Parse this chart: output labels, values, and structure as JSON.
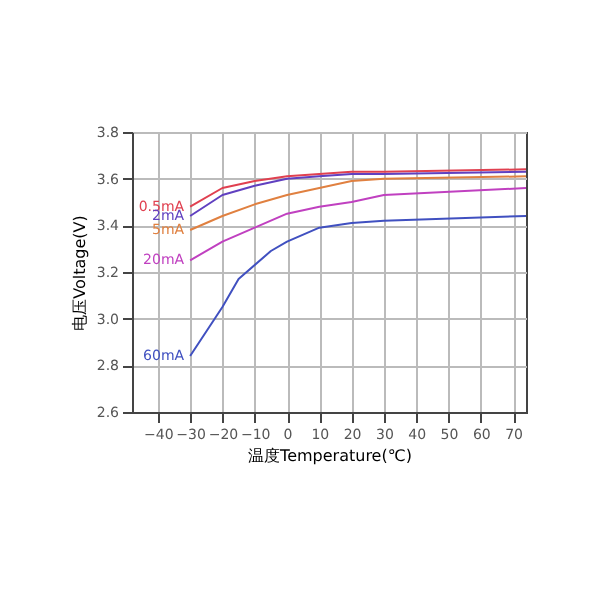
{
  "chart_data": {
    "type": "line",
    "xlabel": "温度Temperature(℃)",
    "ylabel": "电压Voltage(V)",
    "xlim": [
      -48,
      74
    ],
    "xticks": [
      -40,
      -30,
      -20,
      -10,
      0,
      10,
      20,
      30,
      40,
      50,
      60,
      70
    ],
    "ylim": [
      2.6,
      3.8
    ],
    "yticks": [
      {
        "value": 2.6,
        "label": "2.6"
      },
      {
        "value": 2.8,
        "label": "2.8"
      },
      {
        "value": 3.0,
        "label": "3.0"
      },
      {
        "value": 3.2,
        "label": "3.2"
      },
      {
        "value": 3.4,
        "label": "3.4"
      },
      {
        "value": 3.6,
        "label": "3.6"
      },
      {
        "value": 3.8,
        "label": "3.8"
      }
    ],
    "grid": true,
    "legend": false,
    "x": [
      -30,
      -20,
      -10,
      0,
      10,
      20,
      30,
      74
    ],
    "series": [
      {
        "name": "0.5mA",
        "color": "#e04050",
        "values": [
          3.48,
          3.56,
          3.59,
          3.61,
          3.62,
          3.63,
          3.63,
          3.64
        ]
      },
      {
        "name": "2mA",
        "color": "#6040c0",
        "values": [
          3.44,
          3.53,
          3.57,
          3.6,
          3.61,
          3.62,
          3.62,
          3.63
        ]
      },
      {
        "name": "5mA",
        "color": "#e08040",
        "values": [
          3.38,
          3.44,
          3.49,
          3.53,
          3.56,
          3.59,
          3.6,
          3.61
        ]
      },
      {
        "name": "20mA",
        "color": "#c040c0",
        "values": [
          3.25,
          3.33,
          3.39,
          3.45,
          3.48,
          3.5,
          3.53,
          3.56
        ]
      },
      {
        "name": "60mA",
        "color": "#4050c0",
        "x": [
          -30,
          -20,
          -15,
          -5,
          0,
          10,
          20,
          30,
          74
        ],
        "values": [
          2.84,
          3.05,
          3.17,
          3.29,
          3.33,
          3.39,
          3.41,
          3.42,
          3.44
        ]
      }
    ]
  }
}
